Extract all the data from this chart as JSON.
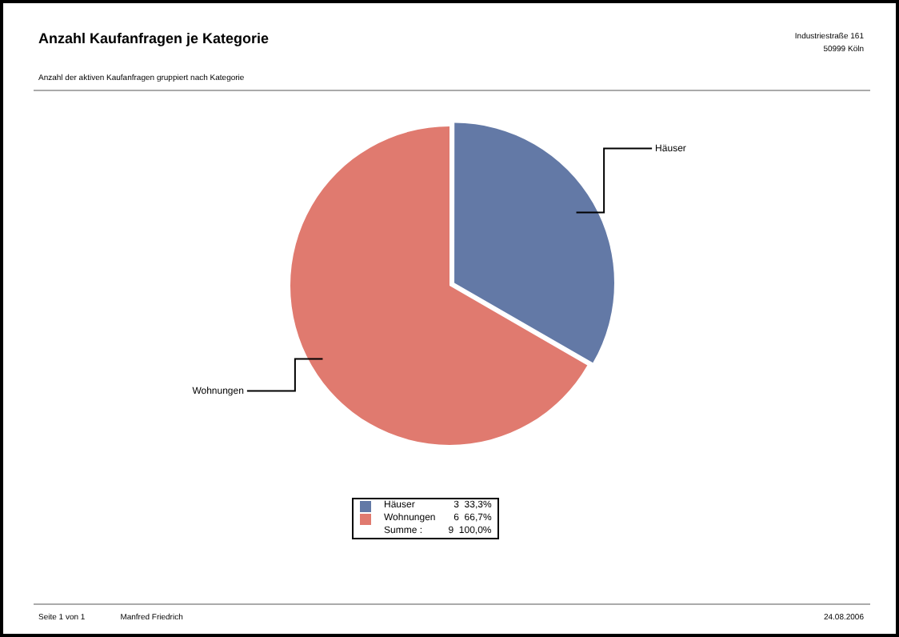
{
  "chart_data": {
    "type": "pie",
    "title": "Anzahl Kaufanfragen je Kategorie",
    "subtitle": "Anzahl der aktiven Kaufanfragen gruppiert nach Kategorie",
    "categories": [
      "Häuser",
      "Wohnungen"
    ],
    "values": [
      3,
      6
    ],
    "colors": [
      "#6379a6",
      "#e07a6f"
    ],
    "value_labels": [
      "3  33,3%",
      "6  66,7%"
    ],
    "totals": [
      "Summe :",
      "9  100,0%"
    ],
    "legend": "bottom",
    "annotations": [
      "Industriestraße 161",
      "50999 Köln",
      "Seite 1 von 1",
      "Manfred Friedrich",
      "24.08.2006"
    ]
  }
}
